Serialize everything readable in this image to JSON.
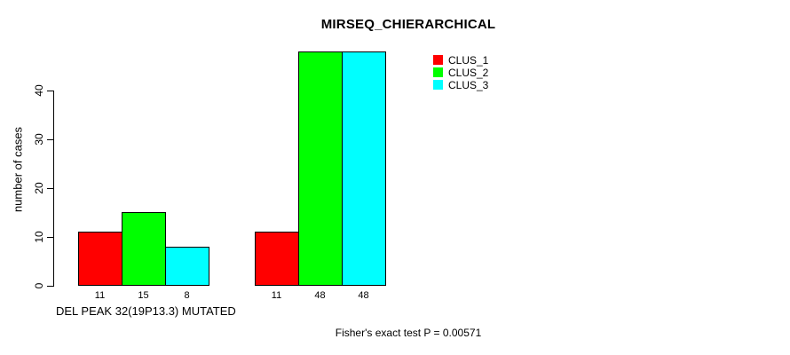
{
  "chart_data": {
    "type": "bar",
    "title": "MIRSEQ_CHIERARCHICAL",
    "ylabel": "number of cases",
    "xlabel": "DEL PEAK 32(19P13.3) MUTATED",
    "footer_note": "Fisher's exact test P = 0.00571",
    "y_ticks": [
      0,
      10,
      20,
      30,
      40
    ],
    "ylim": [
      0,
      48
    ],
    "grid": false,
    "legend_position": "top-right",
    "group_count": 2,
    "series": [
      {
        "name": "CLUS_1",
        "color": "#ff0000",
        "values": [
          11,
          11
        ]
      },
      {
        "name": "CLUS_2",
        "color": "#00ff00",
        "values": [
          15,
          48
        ]
      },
      {
        "name": "CLUS_3",
        "color": "#00ffff",
        "values": [
          8,
          48
        ]
      }
    ],
    "bar_value_labels": [
      [
        "11",
        "15",
        "8"
      ],
      [
        "11",
        "48",
        "48"
      ]
    ]
  }
}
